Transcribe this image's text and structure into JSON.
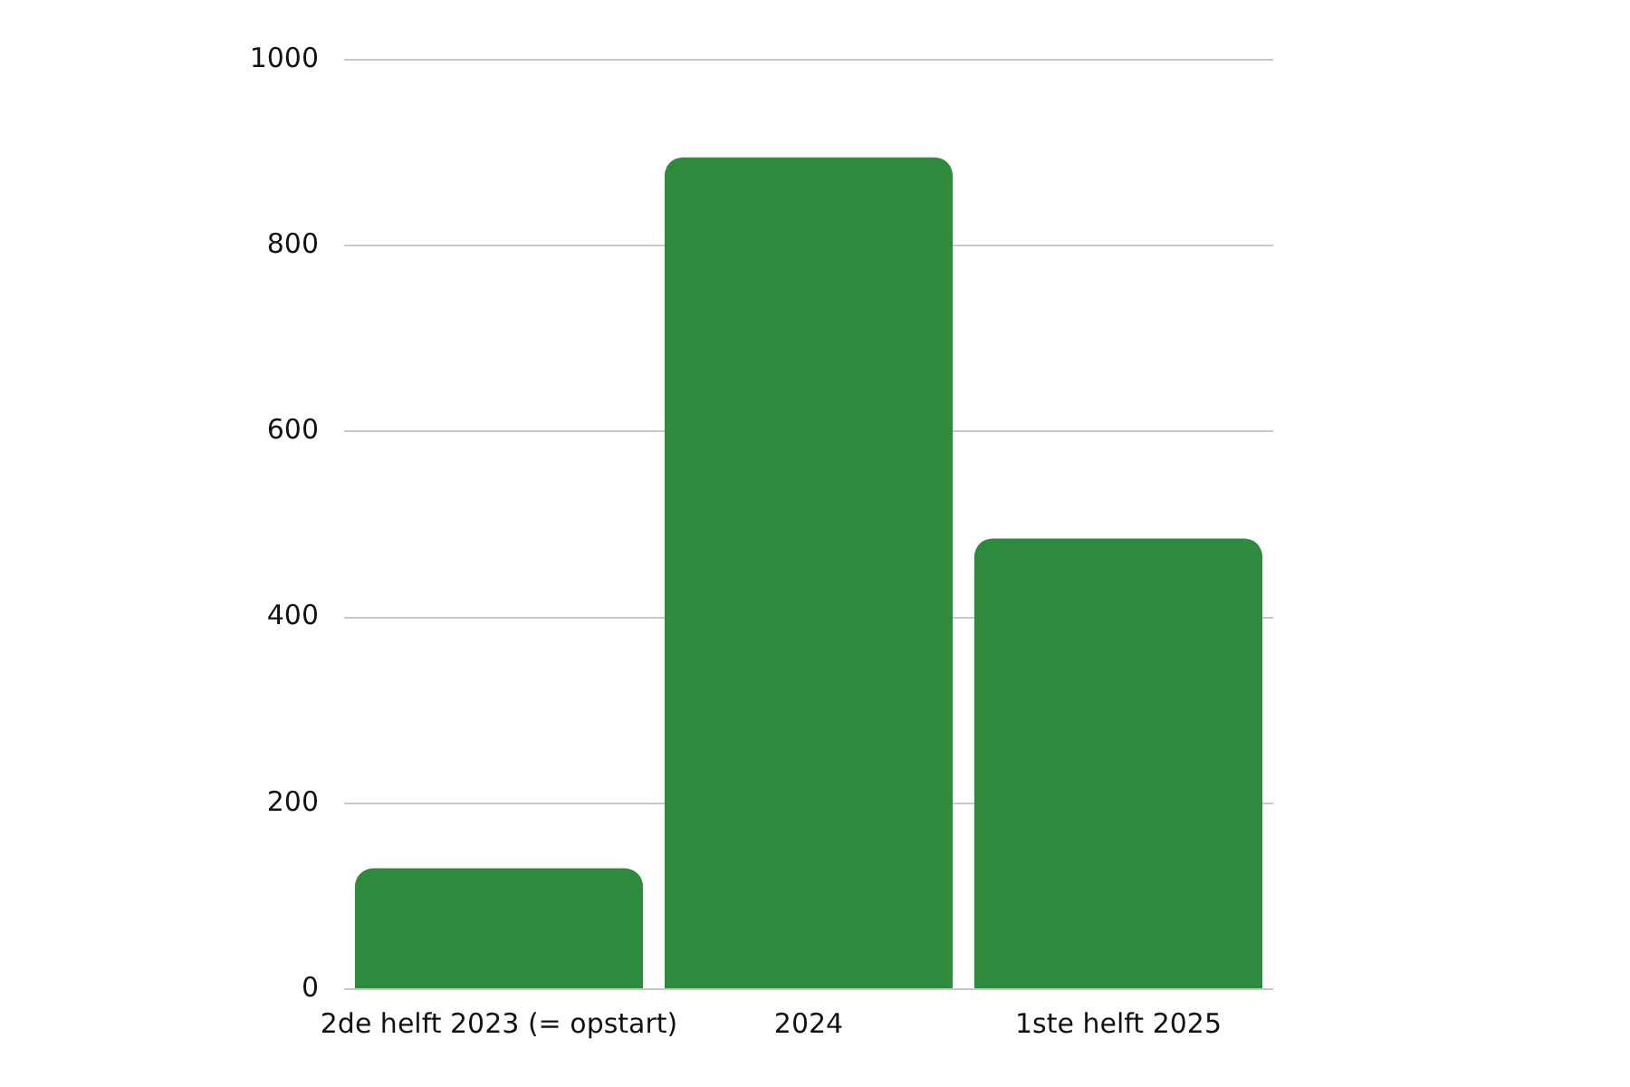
{
  "chart_data": {
    "type": "bar",
    "categories": [
      "2de helft 2023 (= opstart)",
      "2024",
      "1ste helft 2025"
    ],
    "values": [
      130,
      895,
      485
    ],
    "color": "#2e8b3e",
    "ylim": [
      0,
      1000
    ],
    "yticks": [
      0,
      200,
      400,
      600,
      800,
      1000
    ],
    "grid": "y"
  }
}
